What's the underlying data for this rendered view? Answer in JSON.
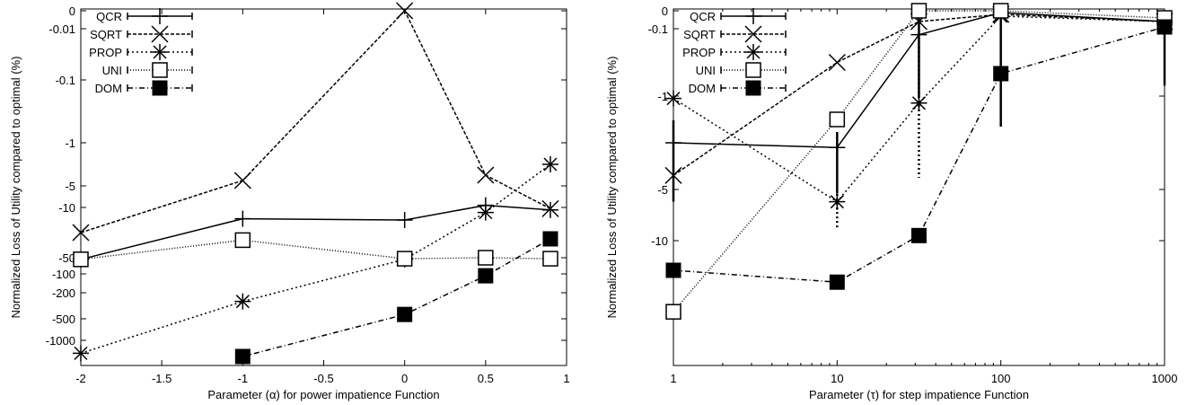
{
  "chart_data": [
    {
      "type": "line",
      "xlabel": "Parameter (α) for power impatience Function",
      "ylabel": "Normalized Loss of Utility compared to optimal (%)",
      "xlim": [
        -2,
        1
      ],
      "x_ticks": [
        -2,
        -1.5,
        -1,
        -0.5,
        0,
        0.5,
        1
      ],
      "x_tick_labels": [
        "-2",
        "-1.5",
        "-1",
        "-0.5",
        "0",
        "0.5",
        "1"
      ],
      "y_scale": "symlog (inverted, 0 at top)",
      "ylim": [
        0,
        -1500
      ],
      "y_ticks": [
        0,
        -0.01,
        -0.1,
        -1,
        -5,
        -10,
        -50,
        -100,
        -200,
        -500,
        -1000
      ],
      "y_tick_labels": [
        "0",
        "-0.01",
        "-0.1",
        "-1",
        "-5",
        "-10",
        "-50",
        "-100",
        "-200",
        "-500",
        "-1000"
      ],
      "legend_position": "top-left",
      "series": [
        {
          "name": "QCR",
          "marker": "plus",
          "dash": "",
          "x": [
            -2,
            -1,
            0,
            0.5,
            0.9
          ],
          "y": [
            -55,
            -19,
            -20,
            -9.5,
            -12
          ]
        },
        {
          "name": "SQRT",
          "marker": "x",
          "dash": "4,2",
          "x": [
            -2,
            -1,
            0,
            0.5,
            0.9
          ],
          "y": [
            -30,
            -4.5,
            0,
            -4,
            -11
          ]
        },
        {
          "name": "PROP",
          "marker": "star",
          "dash": "2,3",
          "x": [
            -2,
            -1,
            0,
            0.5,
            0.9
          ],
          "y": [
            -1400,
            -300,
            -55,
            -14,
            -3
          ]
        },
        {
          "name": "UNI",
          "marker": "square-open",
          "dash": "1,2",
          "x": [
            -2,
            -1,
            0,
            0.5,
            0.9
          ],
          "y": [
            -55,
            -36,
            -53,
            -50,
            -53
          ]
        },
        {
          "name": "DOM",
          "marker": "square-filled",
          "dash": "6,3,1,3",
          "x": [
            -1,
            0,
            0.5,
            0.9
          ],
          "y": [
            -1500,
            -450,
            -110,
            -35
          ]
        }
      ]
    },
    {
      "type": "line",
      "xlabel": "Parameter (τ) for step impatience Function",
      "ylabel": "Normalized Loss of Utility compared to optimal (%)",
      "x_scale": "log",
      "xlim": [
        1,
        1000
      ],
      "x_ticks": [
        1,
        10,
        100,
        1000
      ],
      "x_tick_labels": [
        "1",
        "10",
        "100",
        "1000"
      ],
      "y_scale": "symlog (inverted, 0 at top)",
      "ylim": [
        0,
        -30
      ],
      "y_ticks": [
        0,
        -0.1,
        -1,
        -5,
        -10
      ],
      "y_tick_labels": [
        "0",
        "-0.1",
        "-1",
        "-5",
        "-10"
      ],
      "legend_position": "top-left",
      "series": [
        {
          "name": "QCR",
          "marker": "plus",
          "dash": "",
          "x": [
            1,
            10,
            31.6,
            100,
            1000
          ],
          "y": [
            -3,
            -3.2,
            -0.18,
            -0.01,
            -0.06
          ],
          "err": [
            3.2,
            2.2,
            0.9,
            2.3,
            0.8
          ]
        },
        {
          "name": "SQRT",
          "marker": "x",
          "dash": "4,2",
          "x": [
            1,
            10,
            31.6,
            100,
            1000
          ],
          "y": [
            -4.4,
            -0.55,
            -0.06,
            -0.02,
            -0.06
          ]
        },
        {
          "name": "PROP",
          "marker": "star",
          "dash": "2,3",
          "x": [
            1,
            10,
            31.6,
            100,
            1000
          ],
          "y": [
            -1.1,
            -6.2,
            -1.3,
            -0.03,
            -0.06
          ],
          "err": [
            0,
            2.5,
            3.2,
            0,
            0
          ]
        },
        {
          "name": "UNI",
          "marker": "square-open",
          "dash": "1,2",
          "x": [
            1,
            10,
            31.6,
            100,
            1000
          ],
          "y": [
            -22,
            -2,
            0,
            0,
            -0.04
          ]
        },
        {
          "name": "DOM",
          "marker": "square-filled",
          "dash": "6,3,1,3",
          "x": [
            1,
            10,
            31.6,
            100,
            1000
          ],
          "y": [
            -15,
            -17,
            -9.5,
            -0.7,
            -0.09
          ],
          "err": [
            0,
            0,
            1,
            0,
            0
          ]
        }
      ]
    }
  ]
}
